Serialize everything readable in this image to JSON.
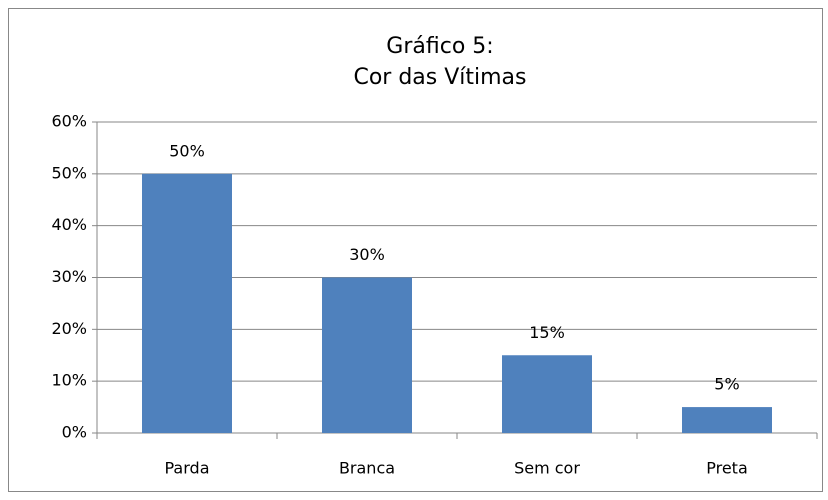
{
  "chart_data": {
    "type": "bar",
    "title": [
      "Gráfico 5:",
      "Cor das Vítimas"
    ],
    "categories": [
      "Parda",
      "Branca",
      "Sem cor",
      "Preta"
    ],
    "values": [
      50,
      30,
      15,
      5
    ],
    "value_labels": [
      "50%",
      "30%",
      "15%",
      "5%"
    ],
    "color": "#4f81bd",
    "ylim": [
      0,
      60
    ],
    "yticks": [
      {
        "value": 0,
        "label": "0%"
      },
      {
        "value": 10,
        "label": "10%"
      },
      {
        "value": 20,
        "label": "20%"
      },
      {
        "value": 30,
        "label": "30%"
      },
      {
        "value": 40,
        "label": "40%"
      },
      {
        "value": 50,
        "label": "50%"
      },
      {
        "value": 60,
        "label": "60%"
      }
    ],
    "grid": true
  }
}
